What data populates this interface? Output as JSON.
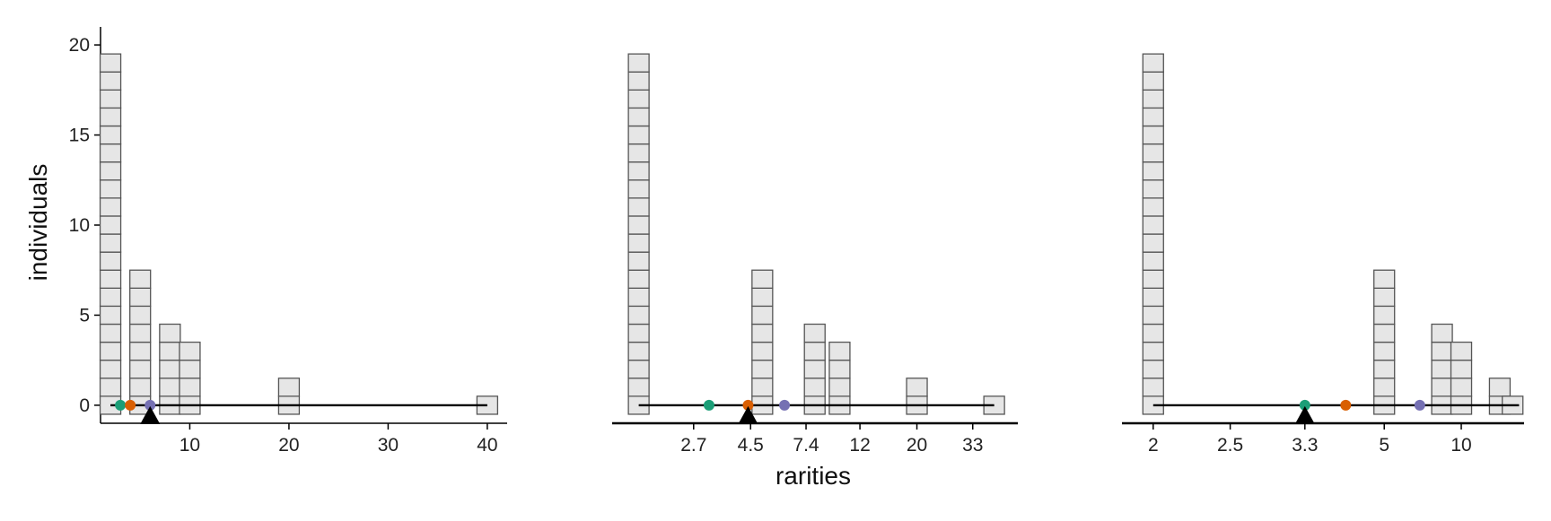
{
  "chart_data": {
    "type": "bar",
    "ylabel": "individuals",
    "xlabel": "rarities",
    "colors": {
      "box_fill": "#e6e6e6",
      "box_stroke": "#555555",
      "axis": "#000000",
      "green": "#1b9e77",
      "orange": "#d95f02",
      "purple": "#7570b3",
      "marker": "#000000"
    },
    "panels": [
      {
        "scale": "linear",
        "xlim": [
          1,
          42
        ],
        "ylim": [
          -1,
          21
        ],
        "yticks": [
          0,
          5,
          10,
          15,
          20
        ],
        "xticks": [
          {
            "value": 10,
            "label": "10"
          },
          {
            "value": 20,
            "label": "20"
          },
          {
            "value": 30,
            "label": "30"
          },
          {
            "value": 40,
            "label": "40"
          }
        ],
        "bars": [
          {
            "x": 2,
            "count": 20
          },
          {
            "x": 5,
            "count": 8
          },
          {
            "x": 8,
            "count": 5
          },
          {
            "x": 10,
            "count": 4
          },
          {
            "x": 20,
            "count": 2
          },
          {
            "x": 40,
            "count": 1
          }
        ],
        "range_line": [
          2,
          40
        ],
        "dots": [
          {
            "x": 3.0,
            "color": "green"
          },
          {
            "x": 4.0,
            "color": "orange"
          },
          {
            "x": 6.0,
            "color": "purple"
          }
        ],
        "marker_x": 6.0
      },
      {
        "scale": "log",
        "xlim": [
          1.3,
          46
        ],
        "ylim": [
          -1,
          21
        ],
        "yticks": [],
        "xticks": [
          {
            "value": 2.7,
            "label": "2.7"
          },
          {
            "value": 4.5,
            "label": "4.5"
          },
          {
            "value": 7.4,
            "label": "7.4"
          },
          {
            "value": 12,
            "label": "12"
          },
          {
            "value": 20,
            "label": "20"
          },
          {
            "value": 33,
            "label": "33"
          }
        ],
        "bars": [
          {
            "x": 1.65,
            "count": 20
          },
          {
            "x": 5.0,
            "count": 8
          },
          {
            "x": 8.0,
            "count": 5
          },
          {
            "x": 10.0,
            "count": 4
          },
          {
            "x": 20.0,
            "count": 2
          },
          {
            "x": 40.0,
            "count": 1
          }
        ],
        "range_line": [
          1.65,
          40
        ],
        "dots": [
          {
            "x": 3.1,
            "color": "green"
          },
          {
            "x": 4.4,
            "color": "orange"
          },
          {
            "x": 6.1,
            "color": "purple"
          }
        ],
        "marker_x": 4.4
      },
      {
        "scale": "reciprocal",
        "xlim": [
          1.85,
          36
        ],
        "ylim": [
          -1,
          21
        ],
        "yticks": [],
        "xticks": [
          {
            "value": 2,
            "label": "2"
          },
          {
            "value": 2.5,
            "label": "2.5"
          },
          {
            "value": 3.3,
            "label": "3.3"
          },
          {
            "value": 5,
            "label": "5"
          },
          {
            "value": 10,
            "label": "10"
          }
        ],
        "bars": [
          {
            "x": 2.0,
            "count": 20
          },
          {
            "x": 5.0,
            "count": 8
          },
          {
            "x": 8.0,
            "count": 5
          },
          {
            "x": 10.0,
            "count": 4
          },
          {
            "x": 20.0,
            "count": 2
          },
          {
            "x": 30.0,
            "count": 1
          }
        ],
        "range_line": [
          2,
          40
        ],
        "dots": [
          {
            "x": 3.3,
            "color": "green"
          },
          {
            "x": 4.0,
            "color": "orange"
          },
          {
            "x": 6.5,
            "color": "purple"
          }
        ],
        "marker_x": 3.3
      }
    ]
  }
}
